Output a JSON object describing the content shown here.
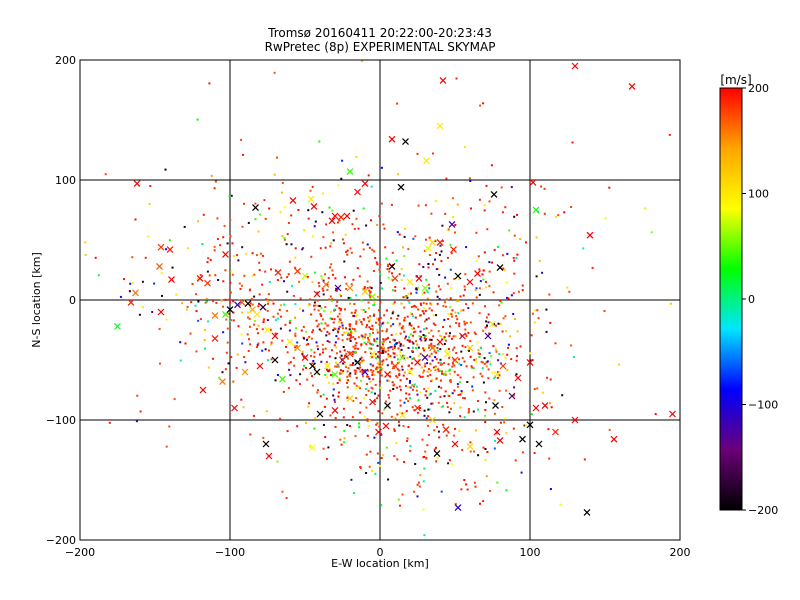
{
  "chart_data": {
    "type": "scatter",
    "title": "Tromsø 20160411 20:22:00-20:23:43",
    "subtitle": "RwPretec (8p) EXPERIMENTAL SKYMAP",
    "xlabel": "E-W location [km]",
    "ylabel": "N-S location [km]",
    "xlim": [
      -200,
      200
    ],
    "ylim": [
      -200,
      200
    ],
    "x_ticks": [
      -200,
      -100,
      0,
      100,
      200
    ],
    "y_ticks": [
      -200,
      -100,
      0,
      100,
      200
    ],
    "x_tick_labels": [
      "−200",
      "−100",
      "0",
      "100",
      "200"
    ],
    "y_tick_labels": [
      "−200",
      "−100",
      "0",
      "100",
      "200"
    ],
    "grid": true,
    "colorbar": {
      "label": "[m/s]",
      "range": [
        -200,
        200
      ],
      "ticks": [
        200,
        100,
        0,
        -100,
        -200
      ],
      "tick_labels": [
        "200",
        "100",
        "0",
        "−100",
        "−200"
      ],
      "colormap": [
        "#000000",
        "#6a0078",
        "#0000ff",
        "#00e6ff",
        "#00ff00",
        "#ffff00",
        "#ffa500",
        "#ff0000"
      ]
    },
    "markers": {
      "cross": "×",
      "dot": "·"
    },
    "crosses": [
      [
        -162,
        97,
        200
      ],
      [
        -146,
        44,
        180
      ],
      [
        -140,
        42,
        190
      ],
      [
        -147,
        28,
        170
      ],
      [
        -139,
        17,
        200
      ],
      [
        -166,
        -2,
        190
      ],
      [
        -163,
        6,
        160
      ],
      [
        -146,
        -10,
        200
      ],
      [
        -175,
        -22,
        20
      ],
      [
        -120,
        18,
        200
      ],
      [
        -115,
        14,
        180
      ],
      [
        -103,
        38,
        200
      ],
      [
        -110,
        -13,
        160
      ],
      [
        -103,
        -12,
        40
      ],
      [
        -100,
        -8,
        -200
      ],
      [
        -95,
        -4,
        -120
      ],
      [
        -92,
        -2,
        170
      ],
      [
        -88,
        -3,
        -200
      ],
      [
        -85,
        -8,
        140
      ],
      [
        -82,
        -12,
        100
      ],
      [
        -78,
        -6,
        -180
      ],
      [
        -75,
        -25,
        90
      ],
      [
        -70,
        -30,
        200
      ],
      [
        -110,
        -32,
        190
      ],
      [
        -118,
        -75,
        200
      ],
      [
        -105,
        -68,
        160
      ],
      [
        -97,
        -90,
        200
      ],
      [
        -83,
        77,
        -200
      ],
      [
        -58,
        83,
        200
      ],
      [
        -46,
        84,
        100
      ],
      [
        -44,
        78,
        200
      ],
      [
        -32,
        66,
        200
      ],
      [
        -30,
        70,
        210
      ],
      [
        -26,
        69,
        190
      ],
      [
        -22,
        70,
        200
      ],
      [
        -15,
        90,
        200
      ],
      [
        -20,
        107,
        40
      ],
      [
        -10,
        97,
        200
      ],
      [
        8,
        134,
        200
      ],
      [
        17,
        132,
        -200
      ],
      [
        14,
        94,
        -200
      ],
      [
        31,
        116,
        100
      ],
      [
        40,
        145,
        100
      ],
      [
        42,
        183,
        200
      ],
      [
        76,
        88,
        -200
      ],
      [
        102,
        98,
        200
      ],
      [
        104,
        75,
        30
      ],
      [
        130,
        195,
        200
      ],
      [
        168,
        178,
        200
      ],
      [
        140,
        54,
        200
      ],
      [
        -68,
        23,
        190
      ],
      [
        -55,
        24,
        180
      ],
      [
        -50,
        20,
        70
      ],
      [
        -42,
        5,
        200
      ],
      [
        -36,
        13,
        160
      ],
      [
        -28,
        10,
        -120
      ],
      [
        -20,
        10,
        150
      ],
      [
        -10,
        7,
        120
      ],
      [
        -5,
        3,
        60
      ],
      [
        8,
        28,
        -200
      ],
      [
        10,
        18,
        180
      ],
      [
        20,
        15,
        100
      ],
      [
        26,
        18,
        200
      ],
      [
        30,
        10,
        60
      ],
      [
        32,
        43,
        80
      ],
      [
        35,
        48,
        110
      ],
      [
        40,
        48,
        190
      ],
      [
        48,
        63,
        -120
      ],
      [
        49,
        42,
        190
      ],
      [
        52,
        20,
        -200
      ],
      [
        60,
        15,
        200
      ],
      [
        65,
        22,
        200
      ],
      [
        80,
        27,
        -200
      ],
      [
        -60,
        -35,
        100
      ],
      [
        -55,
        -40,
        150
      ],
      [
        -50,
        -48,
        200
      ],
      [
        -45,
        -55,
        -200
      ],
      [
        -42,
        -60,
        -200
      ],
      [
        -35,
        -55,
        100
      ],
      [
        -30,
        -62,
        50
      ],
      [
        -25,
        -50,
        200
      ],
      [
        -20,
        -45,
        180
      ],
      [
        -15,
        -52,
        -200
      ],
      [
        -10,
        -60,
        -100
      ],
      [
        -5,
        -45,
        100
      ],
      [
        0,
        -55,
        150
      ],
      [
        5,
        -62,
        200
      ],
      [
        10,
        -55,
        180
      ],
      [
        15,
        -48,
        60
      ],
      [
        20,
        -60,
        100
      ],
      [
        25,
        -52,
        200
      ],
      [
        30,
        -48,
        -120
      ],
      [
        35,
        -40,
        160
      ],
      [
        40,
        -35,
        200
      ],
      [
        45,
        -45,
        100
      ],
      [
        50,
        -50,
        180
      ],
      [
        55,
        -30,
        200
      ],
      [
        60,
        -40,
        120
      ],
      [
        -70,
        -50,
        -200
      ],
      [
        -80,
        -55,
        200
      ],
      [
        -90,
        -60,
        150
      ],
      [
        -65,
        -66,
        40
      ],
      [
        -40,
        -95,
        -200
      ],
      [
        -30,
        -92,
        200
      ],
      [
        -20,
        -82,
        120
      ],
      [
        -5,
        -85,
        200
      ],
      [
        5,
        -88,
        -200
      ],
      [
        15,
        -96,
        100
      ],
      [
        25,
        -90,
        190
      ],
      [
        35,
        -100,
        120
      ],
      [
        44,
        -108,
        190
      ],
      [
        -1,
        -110,
        200
      ],
      [
        4,
        -105,
        200
      ],
      [
        -76,
        -120,
        -200
      ],
      [
        -74,
        -130,
        200
      ],
      [
        -45,
        -123,
        90
      ],
      [
        38,
        -128,
        -200
      ],
      [
        50,
        -120,
        200
      ],
      [
        60,
        -122,
        110
      ],
      [
        80,
        -117,
        200
      ],
      [
        78,
        -110,
        200
      ],
      [
        95,
        -116,
        -200
      ],
      [
        100,
        -104,
        -200
      ],
      [
        106,
        -120,
        -200
      ],
      [
        117,
        -110,
        190
      ],
      [
        104,
        -90,
        200
      ],
      [
        110,
        -88,
        200
      ],
      [
        130,
        -100,
        200
      ],
      [
        156,
        -116,
        200
      ],
      [
        195,
        -95,
        200
      ],
      [
        138,
        -177,
        -200
      ],
      [
        52,
        -173,
        -100
      ],
      [
        72,
        -30,
        -120
      ],
      [
        75,
        -20,
        100
      ],
      [
        78,
        -62,
        100
      ],
      [
        82,
        -55,
        180
      ],
      [
        92,
        -65,
        200
      ],
      [
        100,
        -52,
        200
      ],
      [
        88,
        -80,
        -150
      ],
      [
        77,
        -88,
        -200
      ]
    ],
    "dot_seed": 411,
    "dot_clusters": [
      {
        "cx": 10,
        "cy": -40,
        "sx": 40,
        "sy": 28,
        "n": 900
      },
      {
        "cx": -25,
        "cy": 10,
        "sx": 60,
        "sy": 45,
        "n": 300
      },
      {
        "cx": -90,
        "cy": 0,
        "sx": 45,
        "sy": 35,
        "n": 120
      },
      {
        "cx": 30,
        "cy": -110,
        "sx": 35,
        "sy": 30,
        "n": 180
      },
      {
        "cx": 60,
        "cy": 30,
        "sx": 40,
        "sy": 40,
        "n": 110
      },
      {
        "cx": 0,
        "cy": 0,
        "sx": 120,
        "sy": 100,
        "n": 150
      }
    ],
    "velocity_bias": [
      0.62,
      0.14,
      0.1,
      0.07,
      0.07
    ]
  }
}
